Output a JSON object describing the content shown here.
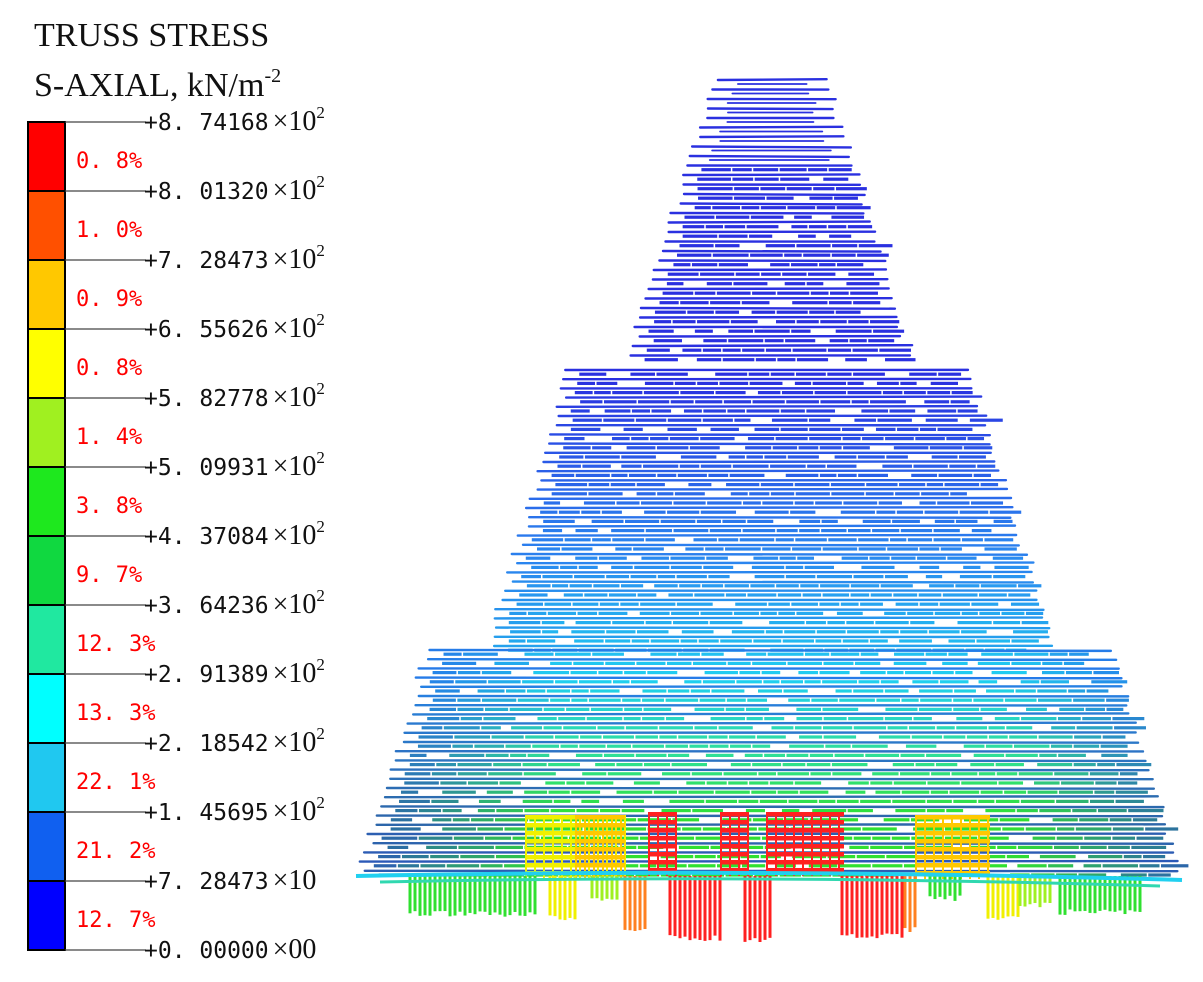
{
  "title_line1": "TRUSS  STRESS",
  "title_line2_main": "S-AXIAL,  kN/m",
  "title_line2_sup": "-2",
  "contour_values": [
    {
      "mant": "+8. 74168",
      "base": "×10",
      "exp": "2"
    },
    {
      "mant": "+8. 01320",
      "base": "×10",
      "exp": "2"
    },
    {
      "mant": "+7. 28473",
      "base": "×10",
      "exp": "2"
    },
    {
      "mant": "+6. 55626",
      "base": "×10",
      "exp": "2"
    },
    {
      "mant": "+5. 82778",
      "base": "×10",
      "exp": "2"
    },
    {
      "mant": "+5. 09931",
      "base": "×10",
      "exp": "2"
    },
    {
      "mant": "+4. 37084",
      "base": "×10",
      "exp": "2"
    },
    {
      "mant": "+3. 64236",
      "base": "×10",
      "exp": "2"
    },
    {
      "mant": "+2. 91389",
      "base": "×10",
      "exp": "2"
    },
    {
      "mant": "+2. 18542",
      "base": "×10",
      "exp": "2"
    },
    {
      "mant": "+1. 45695",
      "base": "×10",
      "exp": "2"
    },
    {
      "mant": "+7. 28473",
      "base": "×10",
      "exp": ""
    },
    {
      "mant": "+0. 00000",
      "base": "×00",
      "exp": ""
    }
  ],
  "bands": [
    {
      "color": "#ff0000",
      "percent": "0. 8%"
    },
    {
      "color": "#ff5000",
      "percent": "1. 0%"
    },
    {
      "color": "#ffc800",
      "percent": "0. 9%"
    },
    {
      "color": "#ffff00",
      "percent": "0. 8%"
    },
    {
      "color": "#a0f020",
      "percent": "1. 4%"
    },
    {
      "color": "#1ee81e",
      "percent": "3. 8%"
    },
    {
      "color": "#10d840",
      "percent": "9. 7%"
    },
    {
      "color": "#20e8a0",
      "percent": "12. 3%"
    },
    {
      "color": "#00ffff",
      "percent": "13. 3%"
    },
    {
      "color": "#20c8f0",
      "percent": "22. 1%"
    },
    {
      "color": "#1060f0",
      "percent": "21. 2%"
    },
    {
      "color": "#0000ff",
      "percent": "12. 7%"
    }
  ],
  "colors": {
    "outline": "#000000",
    "stress_red": "#ff2020",
    "stress_orange": "#ff7010",
    "stress_yellow": "#f0f000",
    "stress_green": "#30e030",
    "stress_cyan": "#20d0f0",
    "stress_blue": "#2a30e0"
  }
}
